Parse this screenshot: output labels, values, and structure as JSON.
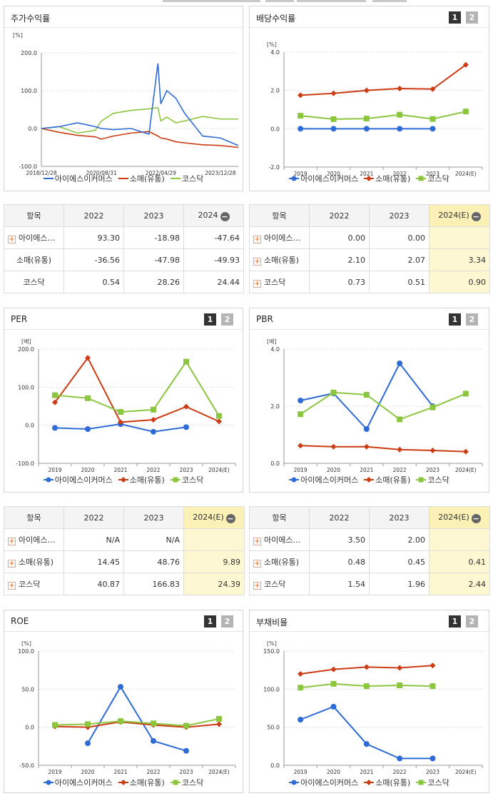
{
  "colors": {
    "company": "#2e6bd6",
    "retail": "#cc3b12",
    "kosdaq": "#8cc63f"
  },
  "legend": [
    "아이에스이커머스",
    "소매(유통)",
    "코스닥"
  ],
  "charts": {
    "stock": {
      "title": "주가수익률",
      "unit": "[%]",
      "y_ticks": [
        "200.0",
        "100.0",
        "0.0",
        "-100.0"
      ],
      "x_ticks": [
        "2018/12/28",
        "2020/08/31",
        "2022/04/29",
        "2023/12/28"
      ]
    },
    "dividend": {
      "title": "배당수익률",
      "page1": "1",
      "page2": "2",
      "unit": "[%]",
      "y_ticks": [
        "4.0",
        "2.0",
        "0.0",
        "-2.0"
      ],
      "x_ticks": [
        "2019",
        "2020",
        "2021",
        "2022",
        "2023",
        "2024(E)"
      ]
    },
    "per": {
      "title": "PER",
      "page1": "1",
      "page2": "2",
      "unit": "[배]",
      "y_ticks": [
        "200.0",
        "100.0",
        "0.0",
        "-100.0"
      ],
      "x_ticks": [
        "2019",
        "2020",
        "2021",
        "2022",
        "2023",
        "2024(E)"
      ]
    },
    "pbr": {
      "title": "PBR",
      "page1": "1",
      "page2": "2",
      "unit": "[배]",
      "y_ticks": [
        "4.0",
        "2.0",
        "0.0"
      ],
      "x_ticks": [
        "2019",
        "2020",
        "2021",
        "2022",
        "2023",
        "2024(E)"
      ]
    },
    "roe": {
      "title": "ROE",
      "page1": "1",
      "page2": "2",
      "unit": "[%]",
      "y_ticks": [
        "100.0",
        "50.0",
        "0.0",
        "-50.0"
      ],
      "x_ticks": [
        "2019",
        "2020",
        "2021",
        "2022",
        "2023",
        "2024(E)"
      ]
    },
    "debt": {
      "title": "부채비율",
      "page1": "1",
      "page2": "2",
      "unit": "[%]",
      "y_ticks": [
        "150.0",
        "100.0",
        "50.0",
        "0.0"
      ],
      "x_ticks": [
        "2019",
        "2020",
        "2021",
        "2022",
        "2023",
        "2024(E)"
      ]
    }
  },
  "tables": {
    "stock": {
      "headers": [
        "항목",
        "2022",
        "2023",
        "2024"
      ],
      "rows": [
        {
          "label": "아이에스…",
          "values": [
            "93.30",
            "-18.98",
            "-47.64"
          ]
        },
        {
          "label": "소매(유통)",
          "values": [
            "-36.56",
            "-47.98",
            "-49.93"
          ]
        },
        {
          "label": "코스닥",
          "values": [
            "0.54",
            "28.26",
            "24.44"
          ]
        }
      ]
    },
    "dividend": {
      "headers": [
        "항목",
        "2022",
        "2023",
        "2024(E)"
      ],
      "rows": [
        {
          "label": "아이에스…",
          "values": [
            "0.00",
            "0.00",
            ""
          ]
        },
        {
          "label": "소매(유통)",
          "values": [
            "2.10",
            "2.07",
            "3.34"
          ]
        },
        {
          "label": "코스닥",
          "values": [
            "0.73",
            "0.51",
            "0.90"
          ]
        }
      ]
    },
    "per": {
      "headers": [
        "항목",
        "2022",
        "2023",
        "2024(E)"
      ],
      "rows": [
        {
          "label": "아이에스…",
          "values": [
            "N/A",
            "N/A",
            ""
          ]
        },
        {
          "label": "소매(유통)",
          "values": [
            "14.45",
            "48.76",
            "9.89"
          ]
        },
        {
          "label": "코스닥",
          "values": [
            "40.87",
            "166.83",
            "24.39"
          ]
        }
      ]
    },
    "pbr": {
      "headers": [
        "항목",
        "2022",
        "2023",
        "2024(E)"
      ],
      "rows": [
        {
          "label": "아이에스…",
          "values": [
            "3.50",
            "2.00",
            ""
          ]
        },
        {
          "label": "소매(유통)",
          "values": [
            "0.48",
            "0.45",
            "0.41"
          ]
        },
        {
          "label": "코스닥",
          "values": [
            "1.54",
            "1.96",
            "2.44"
          ]
        }
      ]
    }
  },
  "chart_data": [
    {
      "type": "line",
      "title": "주가수익률",
      "ylabel": "[%]",
      "ylim": [
        -100,
        200
      ],
      "x": [
        "2018/12/28",
        "2019/06/28",
        "2019/12/30",
        "2020/06/30",
        "2020/08/31",
        "2020/12/30",
        "2021/06/30",
        "2021/12/30",
        "2022/03/31",
        "2022/04/29",
        "2022/06/30",
        "2022/09/30",
        "2022/12/29",
        "2023/06/30",
        "2023/12/28",
        "2024/06/28"
      ],
      "series": [
        {
          "name": "아이에스이커머스",
          "values": [
            0,
            5,
            15,
            5,
            0,
            -3,
            0,
            -15,
            172,
            65,
            100,
            80,
            40,
            -20,
            -25,
            -45
          ]
        },
        {
          "name": "소매(유통)",
          "values": [
            0,
            -10,
            -18,
            -22,
            -28,
            -20,
            -12,
            -8,
            -20,
            -25,
            -28,
            -35,
            -38,
            -43,
            -45,
            -50
          ]
        },
        {
          "name": "코스닥",
          "values": [
            0,
            5,
            -12,
            -5,
            20,
            40,
            48,
            52,
            55,
            20,
            30,
            15,
            20,
            32,
            25,
            25
          ]
        }
      ]
    },
    {
      "type": "line",
      "title": "배당수익률",
      "ylabel": "[%]",
      "ylim": [
        -2,
        4
      ],
      "categories": [
        "2019",
        "2020",
        "2021",
        "2022",
        "2023",
        "2024(E)"
      ],
      "series": [
        {
          "name": "아이에스이커머스",
          "values": [
            0.0,
            0.0,
            0.0,
            0.0,
            0.0,
            null
          ]
        },
        {
          "name": "소매(유통)",
          "values": [
            1.75,
            1.85,
            2.0,
            2.1,
            2.07,
            3.34
          ]
        },
        {
          "name": "코스닥",
          "values": [
            0.68,
            0.5,
            0.53,
            0.73,
            0.51,
            0.9
          ]
        }
      ]
    },
    {
      "type": "line",
      "title": "PER",
      "ylabel": "[배]",
      "ylim": [
        -100,
        200
      ],
      "categories": [
        "2019",
        "2020",
        "2021",
        "2022",
        "2023",
        "2024(E)"
      ],
      "series": [
        {
          "name": "아이에스이커머스",
          "values": [
            -7,
            -10,
            3,
            -17,
            -5,
            null
          ]
        },
        {
          "name": "소매(유통)",
          "values": [
            60,
            177,
            8,
            14.45,
            48.76,
            9.89
          ]
        },
        {
          "name": "코스닥",
          "values": [
            79,
            71,
            35,
            40.87,
            166.83,
            24.39
          ]
        }
      ]
    },
    {
      "type": "line",
      "title": "PBR",
      "ylabel": "[배]",
      "ylim": [
        0,
        4
      ],
      "categories": [
        "2019",
        "2020",
        "2021",
        "2022",
        "2023",
        "2024(E)"
      ],
      "series": [
        {
          "name": "아이에스이커머스",
          "values": [
            2.2,
            2.45,
            1.2,
            3.5,
            2.0,
            null
          ]
        },
        {
          "name": "소매(유통)",
          "values": [
            0.62,
            0.58,
            0.58,
            0.48,
            0.45,
            0.41
          ]
        },
        {
          "name": "코스닥",
          "values": [
            1.72,
            2.48,
            2.4,
            1.54,
            1.96,
            2.44
          ]
        }
      ]
    },
    {
      "type": "line",
      "title": "ROE",
      "ylabel": "[%]",
      "ylim": [
        -50,
        100
      ],
      "categories": [
        "2019",
        "2020",
        "2021",
        "2022",
        "2023",
        "2024(E)"
      ],
      "series": [
        {
          "name": "아이에스이커머스",
          "values": [
            null,
            -21,
            53,
            -18,
            -31,
            null
          ]
        },
        {
          "name": "소매(유통)",
          "values": [
            1,
            0,
            7,
            3,
            0,
            4
          ]
        },
        {
          "name": "코스닥",
          "values": [
            3,
            4,
            8,
            5,
            2,
            11
          ]
        }
      ]
    },
    {
      "type": "line",
      "title": "부채비율",
      "ylabel": "[%]",
      "ylim": [
        0,
        150
      ],
      "categories": [
        "2019",
        "2020",
        "2021",
        "2022",
        "2023",
        "2024(E)"
      ],
      "series": [
        {
          "name": "아이에스이커머스",
          "values": [
            60,
            77,
            28,
            9,
            9,
            null
          ]
        },
        {
          "name": "소매(유통)",
          "values": [
            120,
            126,
            129,
            128,
            131,
            null
          ]
        },
        {
          "name": "코스닥",
          "values": [
            102,
            107,
            104,
            105,
            104,
            null
          ]
        }
      ]
    }
  ]
}
